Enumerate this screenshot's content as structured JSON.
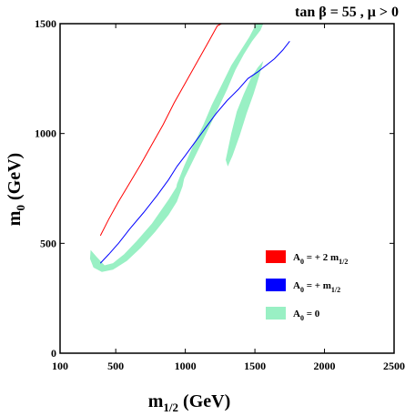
{
  "chart_data": {
    "type": "line",
    "title": "tan β = 55 , μ > 0",
    "xlabel_main": "m",
    "xlabel_sub": "1/2",
    "xlabel_unit": " (GeV)",
    "ylabel_main": "m",
    "ylabel_sub": "0",
    "ylabel_unit": " (GeV)",
    "xlim": [
      100,
      2500
    ],
    "ylim": [
      0,
      1500
    ],
    "xticks": [
      "100",
      "500",
      "1000",
      "1500",
      "2000",
      "2500"
    ],
    "yticks": [
      "0",
      "500",
      "1000",
      "1500"
    ],
    "series": [
      {
        "name": "A0 = + 2 m1/2",
        "legend": {
          "base": "A",
          "base_sub": "0",
          "eq": " =  + 2 m",
          "tail_sub": "1/2"
        },
        "color": "#ff0000",
        "style": "line",
        "points": [
          [
            390,
            535
          ],
          [
            450,
            610
          ],
          [
            520,
            690
          ],
          [
            600,
            775
          ],
          [
            680,
            860
          ],
          [
            760,
            950
          ],
          [
            840,
            1040
          ],
          [
            920,
            1140
          ],
          [
            1000,
            1230
          ],
          [
            1080,
            1320
          ],
          [
            1160,
            1410
          ],
          [
            1230,
            1490
          ],
          [
            1260,
            1500
          ]
        ]
      },
      {
        "name": "A0 = + m1/2",
        "legend": {
          "base": "A",
          "base_sub": "0",
          "eq": " =  + m",
          "tail_sub": "1/2"
        },
        "color": "#0000ff",
        "style": "line",
        "points": [
          [
            390,
            410
          ],
          [
            450,
            450
          ],
          [
            520,
            500
          ],
          [
            600,
            565
          ],
          [
            700,
            640
          ],
          [
            800,
            720
          ],
          [
            880,
            790
          ],
          [
            940,
            850
          ],
          [
            1000,
            900
          ],
          [
            1080,
            970
          ],
          [
            1150,
            1030
          ],
          [
            1220,
            1090
          ],
          [
            1300,
            1150
          ],
          [
            1380,
            1200
          ],
          [
            1450,
            1250
          ],
          [
            1520,
            1280
          ],
          [
            1580,
            1310
          ],
          [
            1640,
            1340
          ],
          [
            1700,
            1380
          ],
          [
            1750,
            1420
          ]
        ]
      },
      {
        "name": "A0 = 0",
        "legend": {
          "base": "A",
          "base_sub": "0",
          "eq": " =  0",
          "tail_sub": ""
        },
        "color": "#99f0c4",
        "style": "band",
        "regions": [
          [
            [
              320,
              470
            ],
            [
              360,
              440
            ],
            [
              420,
              400
            ],
            [
              480,
              410
            ],
            [
              560,
              450
            ],
            [
              650,
              510
            ],
            [
              760,
              590
            ],
            [
              880,
              700
            ],
            [
              960,
              780
            ],
            [
              1000,
              820
            ],
            [
              980,
              760
            ],
            [
              940,
              690
            ],
            [
              880,
              630
            ],
            [
              780,
              550
            ],
            [
              680,
              480
            ],
            [
              580,
              420
            ],
            [
              480,
              380
            ],
            [
              400,
              370
            ],
            [
              340,
              390
            ],
            [
              315,
              430
            ]
          ],
          [
            [
              920,
              700
            ],
            [
              980,
              780
            ],
            [
              1050,
              870
            ],
            [
              1120,
              960
            ],
            [
              1180,
              1040
            ],
            [
              1240,
              1120
            ],
            [
              1300,
              1200
            ],
            [
              1360,
              1290
            ],
            [
              1420,
              1360
            ],
            [
              1480,
              1420
            ],
            [
              1540,
              1470
            ],
            [
              1560,
              1500
            ],
            [
              1510,
              1500
            ],
            [
              1460,
              1440
            ],
            [
              1400,
              1380
            ],
            [
              1330,
              1310
            ],
            [
              1260,
              1220
            ],
            [
              1190,
              1130
            ],
            [
              1130,
              1040
            ],
            [
              1060,
              950
            ],
            [
              990,
              850
            ],
            [
              940,
              770
            ]
          ],
          [
            [
              1290,
              880
            ],
            [
              1330,
              1000
            ],
            [
              1370,
              1100
            ],
            [
              1420,
              1180
            ],
            [
              1470,
              1250
            ],
            [
              1520,
              1300
            ],
            [
              1560,
              1330
            ],
            [
              1530,
              1260
            ],
            [
              1490,
              1180
            ],
            [
              1440,
              1090
            ],
            [
              1390,
              990
            ],
            [
              1340,
              900
            ],
            [
              1305,
              850
            ]
          ]
        ]
      }
    ],
    "legend_position": "inside-lower-right",
    "grid": false
  }
}
